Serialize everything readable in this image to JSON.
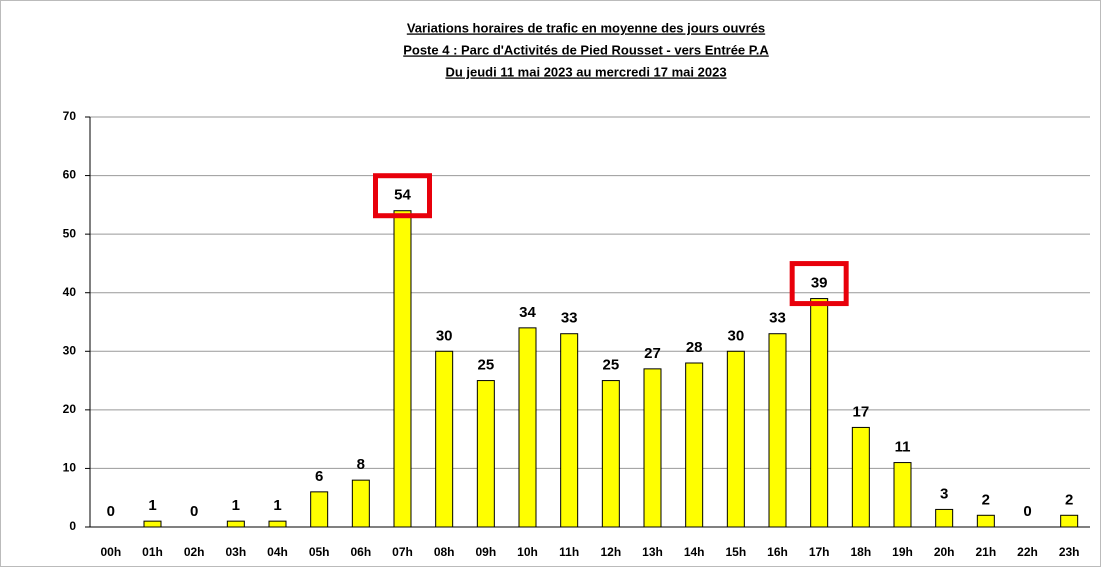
{
  "chart_data": {
    "type": "bar",
    "title": [
      "Variations horaires de trafic en moyenne des jours ouvrés",
      "Poste 4 : Parc d'Activités de Pied Rousset - vers Entrée P.A",
      "Du jeudi 11 mai 2023 au mercredi 17 mai 2023"
    ],
    "categories": [
      "00h",
      "01h",
      "02h",
      "03h",
      "04h",
      "05h",
      "06h",
      "07h",
      "08h",
      "09h",
      "10h",
      "11h",
      "12h",
      "13h",
      "14h",
      "15h",
      "16h",
      "17h",
      "18h",
      "19h",
      "20h",
      "21h",
      "22h",
      "23h"
    ],
    "values": [
      0,
      1,
      0,
      1,
      1,
      6,
      8,
      54,
      30,
      25,
      34,
      33,
      25,
      27,
      28,
      30,
      33,
      39,
      17,
      11,
      3,
      2,
      0,
      2
    ],
    "color": "#ffff00",
    "highlighted_categories": [
      "07h",
      "17h"
    ],
    "highlight_color": "#e8000b",
    "ylim": [
      0,
      70
    ],
    "yticks": [
      0,
      10,
      20,
      30,
      40,
      50,
      60,
      70
    ],
    "grid": true
  }
}
